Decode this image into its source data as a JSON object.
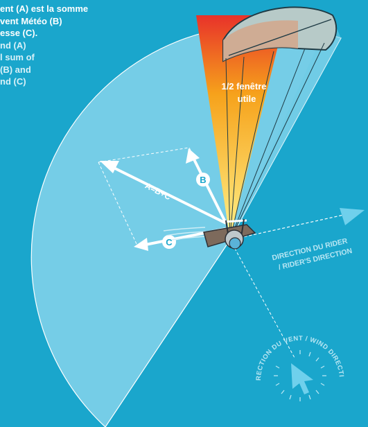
{
  "caption": {
    "fr_lines": [
      "ent (A) est la somme",
      "vent Météo (B)",
      "esse (C)."
    ],
    "en_lines": [
      "nd (A)",
      "l sum of",
      "(B) and",
      "nd (C)"
    ]
  },
  "window_label": [
    "1/2 fenêtre",
    "utile"
  ],
  "vector_labels": {
    "a": "A=B+C",
    "b": "B",
    "c": "C"
  },
  "rider_direction": [
    "DIRECTION DU RIDER",
    "/ RIDER'S DIRECTION"
  ],
  "wind_direction": "DIRECTION DU VENT / WIND DIRECTION",
  "icons": [
    "kite-icon",
    "kiteboarder-icon",
    "wind-arrow-icon",
    "compass-icon"
  ],
  "colors": {
    "background": "#1aa6cc",
    "wind_window": "#8fd9ee",
    "power_zone_top": "#e8322a",
    "power_zone_mid": "#f6a21b",
    "power_zone_bottom": "#fff28a",
    "arrows": "#ffffff"
  }
}
